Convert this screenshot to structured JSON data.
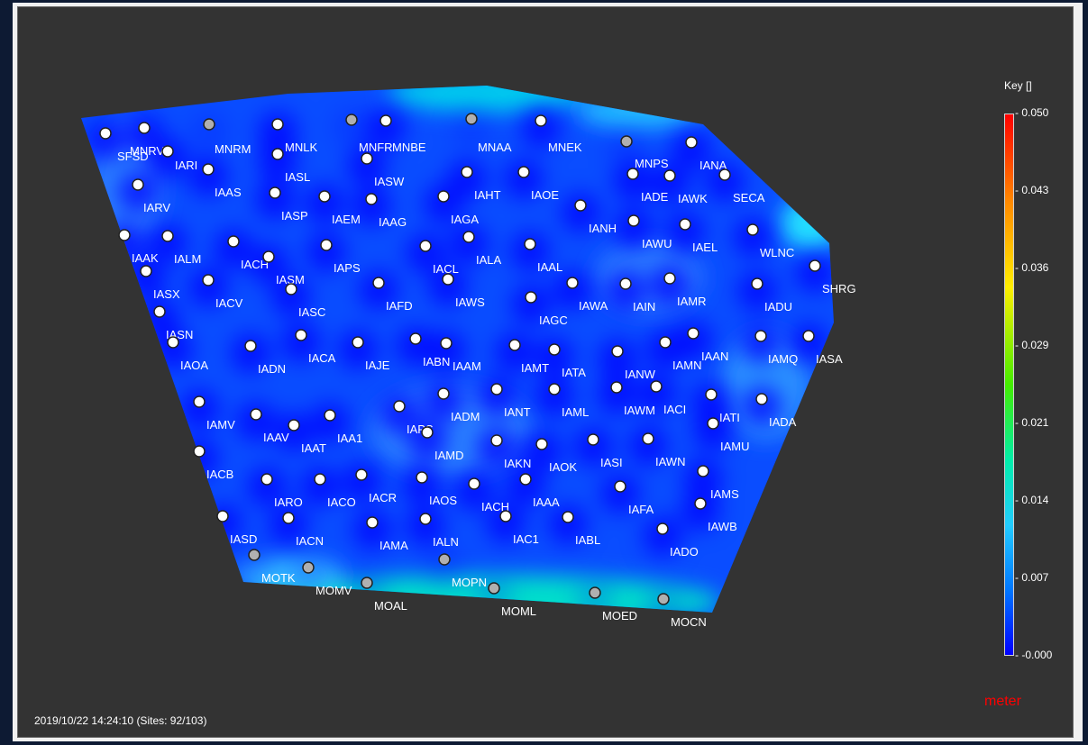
{
  "status": {
    "timestamp": "2019/10/22 14:24:10 (Sites: 92/103)"
  },
  "legend": {
    "title": "Key []",
    "ticks": [
      "0.050",
      "0.043",
      "0.036",
      "0.029",
      "0.021",
      "0.014",
      "0.007",
      "-0.000"
    ],
    "unit": "meter"
  },
  "map": {
    "field_color_low": "#0000ff",
    "field_color_high": "#00ffcc",
    "inactive_site_color": "#b0b0b0",
    "active_site_color": "#ffffff",
    "sites": [
      {
        "name": "SFSD",
        "active": true
      },
      {
        "name": "MNRV",
        "active": true
      },
      {
        "name": "IARI",
        "active": true
      },
      {
        "name": "MNRM",
        "active": false
      },
      {
        "name": "MNLK",
        "active": true
      },
      {
        "name": "MNFR",
        "active": false
      },
      {
        "name": "MNBE",
        "active": true
      },
      {
        "name": "MNAA",
        "active": false
      },
      {
        "name": "MNEK",
        "active": true
      },
      {
        "name": "MNPS",
        "active": false
      },
      {
        "name": "IANA",
        "active": true
      },
      {
        "name": "IAAS",
        "active": true
      },
      {
        "name": "IASL",
        "active": true
      },
      {
        "name": "IASW",
        "active": true
      },
      {
        "name": "IAHT",
        "active": true
      },
      {
        "name": "IAOE",
        "active": true
      },
      {
        "name": "IADE",
        "active": true
      },
      {
        "name": "IAWK",
        "active": true
      },
      {
        "name": "SECA",
        "active": true
      },
      {
        "name": "IARV",
        "active": true
      },
      {
        "name": "IASP",
        "active": true
      },
      {
        "name": "IAEM",
        "active": true
      },
      {
        "name": "IAAG",
        "active": true
      },
      {
        "name": "IAGA",
        "active": true
      },
      {
        "name": "IANH",
        "active": true
      },
      {
        "name": "IAWU",
        "active": true
      },
      {
        "name": "IAEL",
        "active": true
      },
      {
        "name": "WLNC",
        "active": true
      },
      {
        "name": "IAAK",
        "active": true
      },
      {
        "name": "IALM",
        "active": true
      },
      {
        "name": "IACH",
        "active": true
      },
      {
        "name": "IASM",
        "active": true
      },
      {
        "name": "IAPS",
        "active": true
      },
      {
        "name": "IACL",
        "active": true
      },
      {
        "name": "IALA",
        "active": true
      },
      {
        "name": "IAAL",
        "active": true
      },
      {
        "name": "SHRG",
        "active": true
      },
      {
        "name": "IASX",
        "active": true
      },
      {
        "name": "IACV",
        "active": true
      },
      {
        "name": "IASC",
        "active": true
      },
      {
        "name": "IAFD",
        "active": true
      },
      {
        "name": "IAWS",
        "active": true
      },
      {
        "name": "IAGC",
        "active": true
      },
      {
        "name": "IAWA",
        "active": true
      },
      {
        "name": "IAIN",
        "active": true
      },
      {
        "name": "IAMR",
        "active": true
      },
      {
        "name": "IADU",
        "active": true
      },
      {
        "name": "IASN",
        "active": true
      },
      {
        "name": "IAOA",
        "active": true
      },
      {
        "name": "IADN",
        "active": true
      },
      {
        "name": "IACA",
        "active": true
      },
      {
        "name": "IAJE",
        "active": true
      },
      {
        "name": "IABN",
        "active": true
      },
      {
        "name": "IAAM",
        "active": true
      },
      {
        "name": "IAMT",
        "active": true
      },
      {
        "name": "IATA",
        "active": true
      },
      {
        "name": "IANW",
        "active": true
      },
      {
        "name": "IAMN",
        "active": true
      },
      {
        "name": "IAAN",
        "active": true
      },
      {
        "name": "IAMQ",
        "active": true
      },
      {
        "name": "IASA",
        "active": true
      },
      {
        "name": "IAMV",
        "active": true
      },
      {
        "name": "IAAV",
        "active": true
      },
      {
        "name": "IAAT",
        "active": true
      },
      {
        "name": "IAA1",
        "active": true
      },
      {
        "name": "IAPS",
        "active": true
      },
      {
        "name": "IADM",
        "active": true
      },
      {
        "name": "IANT",
        "active": true
      },
      {
        "name": "IAML",
        "active": true
      },
      {
        "name": "IAWM",
        "active": true
      },
      {
        "name": "IACI",
        "active": true
      },
      {
        "name": "IATI",
        "active": true
      },
      {
        "name": "IADA",
        "active": true
      },
      {
        "name": "IAMD",
        "active": true
      },
      {
        "name": "IAMU",
        "active": true
      },
      {
        "name": "IACB",
        "active": true
      },
      {
        "name": "IAKN",
        "active": true
      },
      {
        "name": "IAOK",
        "active": true
      },
      {
        "name": "IASI",
        "active": true
      },
      {
        "name": "IAWN",
        "active": true
      },
      {
        "name": "IARO",
        "active": true
      },
      {
        "name": "IACO",
        "active": true
      },
      {
        "name": "IACR",
        "active": true
      },
      {
        "name": "IAOS",
        "active": true
      },
      {
        "name": "IACH",
        "active": true
      },
      {
        "name": "IAAA",
        "active": true
      },
      {
        "name": "IAFA",
        "active": true
      },
      {
        "name": "IAMS",
        "active": true
      },
      {
        "name": "IAWB",
        "active": true
      },
      {
        "name": "IASD",
        "active": true
      },
      {
        "name": "IACN",
        "active": true
      },
      {
        "name": "IAMA",
        "active": true
      },
      {
        "name": "IALN",
        "active": true
      },
      {
        "name": "IAC1",
        "active": true
      },
      {
        "name": "IABL",
        "active": true
      },
      {
        "name": "IADO",
        "active": true
      },
      {
        "name": "MOTK",
        "active": false
      },
      {
        "name": "MOMV",
        "active": false
      },
      {
        "name": "MOAL",
        "active": false
      },
      {
        "name": "MOPN",
        "active": false
      },
      {
        "name": "MOML",
        "active": false
      },
      {
        "name": "MOED",
        "active": false
      },
      {
        "name": "MOCN",
        "active": false
      }
    ]
  }
}
